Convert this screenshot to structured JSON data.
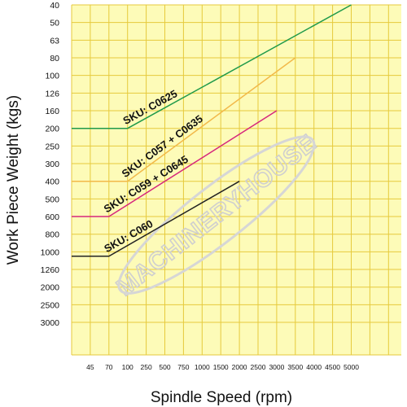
{
  "chart_data": {
    "type": "line",
    "xlabel": "Spindle Speed (rpm)",
    "ylabel": "Work Piece Weight (kgs)",
    "x_ticks": [
      "45",
      "70",
      "100",
      "250",
      "500",
      "750",
      "1000",
      "1500",
      "2000",
      "2500",
      "3000",
      "3500",
      "4000",
      "4500",
      "5000"
    ],
    "y_ticks": [
      "40",
      "50",
      "63",
      "80",
      "100",
      "126",
      "160",
      "200",
      "250",
      "300",
      "400",
      "500",
      "600",
      "800",
      "1000",
      "1260",
      "2000",
      "2500",
      "3000"
    ],
    "grid": true,
    "background_color": "#fdfbb8",
    "grid_color": "#e6ca3c",
    "series": [
      {
        "name": "SKU: C0625",
        "color": "#1f9a4a",
        "points": [
          {
            "x": "0",
            "y": "200"
          },
          {
            "x": "100",
            "y": "200"
          },
          {
            "x": "5000",
            "y": "40"
          }
        ]
      },
      {
        "name": "SKU: C057 + C0635",
        "color": "#f2b94a",
        "points": [
          {
            "x": "0",
            "y": "400"
          },
          {
            "x": "100",
            "y": "400"
          },
          {
            "x": "3500",
            "y": "80"
          }
        ]
      },
      {
        "name": "SKU: C059 + C0645",
        "color": "#d6267c",
        "points": [
          {
            "x": "0",
            "y": "600"
          },
          {
            "x": "70",
            "y": "600"
          },
          {
            "x": "3000",
            "y": "160"
          }
        ]
      },
      {
        "name": "SKU: C060",
        "color": "#222222",
        "points": [
          {
            "x": "0",
            "y": "1050"
          },
          {
            "x": "70",
            "y": "1050"
          },
          {
            "x": "2000",
            "y": "400"
          }
        ]
      }
    ],
    "watermark": "MACHINERYHOUSE"
  }
}
